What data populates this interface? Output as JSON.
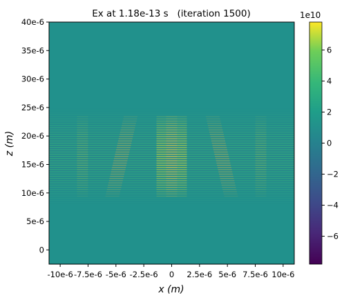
{
  "chart_data": {
    "type": "heatmap",
    "title": "Ex at 1.18e-13 s   (iteration 1500)",
    "xlabel": "x (m)",
    "ylabel": "z (m)",
    "xlim": [
      -11.0,
      11.0
    ],
    "ylim": [
      -2.5,
      40.0
    ],
    "x_tick_values": [
      -10,
      -7.5,
      -5,
      -2.5,
      0,
      2.5,
      5,
      7.5,
      10
    ],
    "x_tick_labels": [
      "-10e-6",
      "-7.5e-6",
      "-5e-6",
      "-2.5e-6",
      "0",
      "2.5e-6",
      "5e-6",
      "7.5e-6",
      "10e-6"
    ],
    "y_tick_values": [
      0,
      5,
      10,
      15,
      20,
      25,
      30,
      35,
      40
    ],
    "y_tick_labels": [
      "0",
      "5e-6",
      "10e-6",
      "15e-6",
      "20e-6",
      "25e-6",
      "30e-6",
      "35e-6",
      "40e-6"
    ],
    "colorbar": {
      "multiplier": "1e10",
      "range": [
        -7.8,
        7.8
      ],
      "tick_values": [
        -6,
        -4,
        -2,
        0,
        2,
        4,
        6
      ],
      "tick_labels": [
        "−6",
        "−4",
        "−2",
        "0",
        "2",
        "4",
        "6"
      ],
      "colormap": "viridis"
    },
    "field_band": {
      "z_range": [
        8,
        25
      ],
      "central_beam_x": 0,
      "diagonal_arms_x_at_bottom": [
        -5.5,
        5.5
      ],
      "diagonal_arms_x_at_top": [
        -3.5,
        3.5
      ],
      "outer_arms_x": [
        -8,
        8
      ]
    },
    "grid": false,
    "legend": "none"
  }
}
